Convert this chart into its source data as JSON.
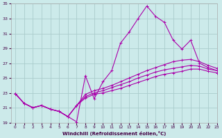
{
  "xlabel": "Windchill (Refroidissement éolien,°C)",
  "background_color": "#cceaea",
  "grid_color": "#aacccc",
  "line_color": "#aa00aa",
  "xlim": [
    -0.5,
    23
  ],
  "ylim": [
    19,
    35
  ],
  "xticks": [
    0,
    1,
    2,
    3,
    4,
    5,
    6,
    7,
    8,
    9,
    10,
    11,
    12,
    13,
    14,
    15,
    16,
    17,
    18,
    19,
    20,
    21,
    22,
    23
  ],
  "yticks": [
    19,
    21,
    23,
    25,
    27,
    29,
    31,
    33,
    35
  ],
  "series": [
    [
      22.9,
      21.6,
      21.0,
      21.3,
      20.8,
      20.5,
      19.8,
      19.1,
      25.3,
      22.2,
      24.5,
      26.0,
      29.7,
      31.2,
      33.0,
      34.7,
      33.3,
      32.5,
      30.1,
      28.9,
      30.1,
      27.0,
      26.4,
      26.0
    ],
    [
      22.9,
      21.6,
      21.0,
      21.3,
      20.8,
      20.5,
      19.8,
      21.3,
      22.3,
      22.8,
      23.0,
      23.3,
      23.6,
      24.0,
      24.4,
      24.8,
      25.2,
      25.5,
      25.7,
      25.9,
      26.2,
      26.2,
      25.9,
      25.7
    ],
    [
      22.9,
      21.6,
      21.0,
      21.3,
      20.8,
      20.5,
      19.8,
      21.3,
      22.8,
      23.3,
      23.6,
      24.0,
      24.5,
      25.0,
      25.5,
      26.0,
      26.4,
      26.8,
      27.2,
      27.4,
      27.5,
      27.2,
      26.7,
      26.3
    ],
    [
      22.9,
      21.6,
      21.0,
      21.3,
      20.8,
      20.5,
      19.8,
      21.3,
      22.5,
      23.0,
      23.3,
      23.7,
      24.1,
      24.5,
      25.0,
      25.4,
      25.8,
      26.1,
      26.3,
      26.5,
      26.7,
      26.6,
      26.2,
      26.0
    ]
  ]
}
